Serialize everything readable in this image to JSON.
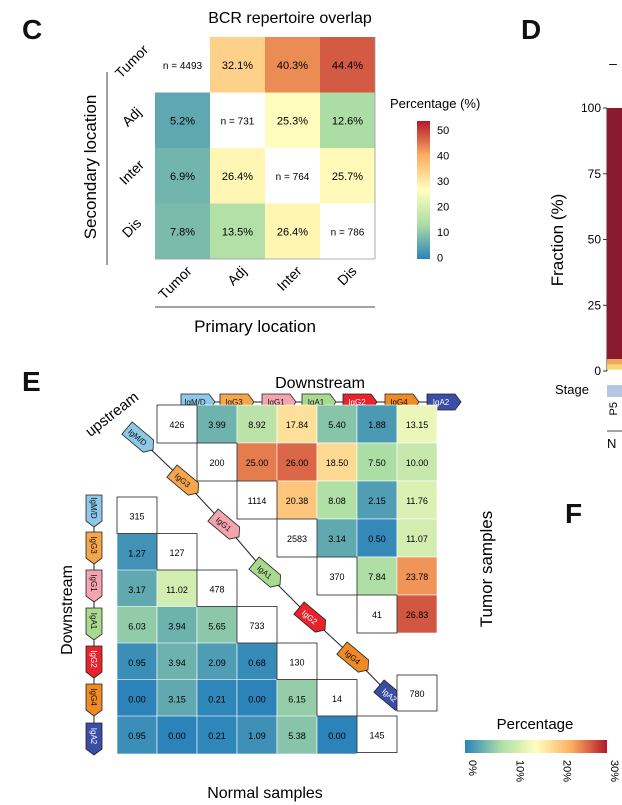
{
  "panels": {
    "c": "C",
    "d": "D",
    "e": "E",
    "f": "F"
  },
  "chart_data": [
    {
      "type": "heatmap",
      "title": "BCR repertoire overlap",
      "xlabel": "Primary location",
      "ylabel": "Secondary location",
      "x_categories": [
        "Tumor",
        "Adj",
        "Inter",
        "Dis"
      ],
      "y_categories": [
        "Tumor",
        "Adj",
        "Inter",
        "Dis"
      ],
      "cells": [
        [
          {
            "label": "n = 4493"
          },
          {
            "value": 32.1,
            "label": "32.1%"
          },
          {
            "value": 40.3,
            "label": "40.3%"
          },
          {
            "value": 44.4,
            "label": "44.4%"
          }
        ],
        [
          {
            "value": 5.2,
            "label": "5.2%"
          },
          {
            "label": "n = 731"
          },
          {
            "value": 25.3,
            "label": "25.3%"
          },
          {
            "value": 12.6,
            "label": "12.6%"
          }
        ],
        [
          {
            "value": 6.9,
            "label": "6.9%"
          },
          {
            "value": 26.4,
            "label": "26.4%"
          },
          {
            "label": "n = 764"
          },
          {
            "value": 25.7,
            "label": "25.7%"
          }
        ],
        [
          {
            "value": 7.8,
            "label": "7.8%"
          },
          {
            "value": 13.5,
            "label": "13.5%"
          },
          {
            "value": 26.4,
            "label": "26.4%"
          },
          {
            "label": "n = 786"
          }
        ]
      ],
      "colorbar": {
        "title": "Percentage (%)",
        "ticks": [
          "50",
          "40",
          "30",
          "20",
          "10",
          "0"
        ],
        "range": [
          0,
          50
        ]
      }
    },
    {
      "type": "bar",
      "ylabel": "Fraction (%)",
      "y_ticks": [
        "100",
        "75",
        "50",
        "25",
        "0"
      ],
      "ylim": [
        0,
        100
      ],
      "stage_label": "Stage",
      "sample_label": "P5",
      "partial_label": "N",
      "top_mark": "–",
      "colors": [
        "#8b1a2e",
        "#f2a65a",
        "#f7d774",
        "#b5c7e0"
      ]
    },
    {
      "type": "heatmap",
      "title": "Downstream",
      "upstream_label": "upstream",
      "left_label": "Downstream",
      "right_label": "Tumor samples",
      "bottom_label": "Normal samples",
      "isotypes": [
        "IgM/D",
        "IgG3",
        "IgG1",
        "IgA1",
        "IgG2",
        "IgG4",
        "IgA2"
      ],
      "isotype_colors": [
        "#8ec8e8",
        "#f5a54a",
        "#f4a3b0",
        "#a9d88f",
        "#e8232b",
        "#f08a24",
        "#3b4ea6"
      ],
      "upper_rows": [
        [
          "3.99",
          "8.92",
          "17.84",
          "5.40",
          "1.88",
          "13.15"
        ],
        [
          "25.00",
          "26.00",
          "18.50",
          "7.50",
          "10.00"
        ],
        [
          "20.38",
          "8.08",
          "2.15",
          "11.76"
        ],
        [
          "3.14",
          "0.50",
          "11.07"
        ],
        [
          "7.84",
          "23.78"
        ],
        [
          "26.83"
        ]
      ],
      "tumor_diag": [
        "426",
        "200",
        "1114",
        "2583",
        "370",
        "41",
        "780"
      ],
      "lower_rows": [
        [],
        [
          "1.27"
        ],
        [
          "3.17",
          "11.02"
        ],
        [
          "6.03",
          "3.94",
          "5.65"
        ],
        [
          "0.95",
          "3.94",
          "2.09",
          "0.68"
        ],
        [
          "0.00",
          "3.15",
          "0.21",
          "0.00",
          "6.15"
        ],
        [
          "0.95",
          "0.00",
          "0.21",
          "1.09",
          "5.38",
          "0.00"
        ]
      ],
      "normal_diag": [
        "315",
        "127",
        "478",
        "733",
        "130",
        "14",
        "145"
      ],
      "colorbar": {
        "title": "Percentage",
        "ticks": [
          "0%",
          "10%",
          "20%",
          "30%"
        ],
        "range": [
          0,
          30
        ]
      }
    }
  ]
}
